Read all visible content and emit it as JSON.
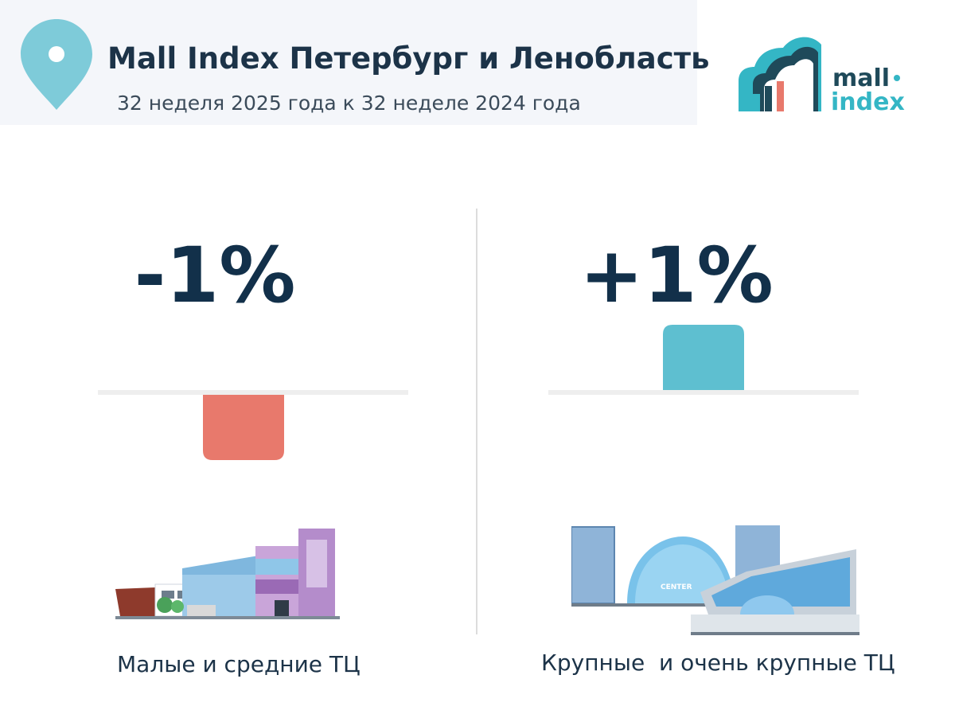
{
  "header": {
    "title": "Mall Index Петербург и Ленобласть",
    "subtitle": "32 неделя 2025 года к 32 неделе 2024 года",
    "pin_icon": "location-pin-icon",
    "logo": {
      "line1": "mall",
      "line2": "index"
    }
  },
  "colors": {
    "pin": "#7ecbd9",
    "negative": "#e8796c",
    "positive": "#5ebfd0",
    "baseline": "#eeeeee",
    "text": "#12304a",
    "logo_teal": "#34b6c5",
    "logo_dark": "#1f4a5a"
  },
  "chart_data": [
    {
      "type": "bar",
      "categories": [
        "Малые и средние ТЦ"
      ],
      "values": [
        -1
      ],
      "value_label": "-1%",
      "unit": "%"
    },
    {
      "type": "bar",
      "categories": [
        "Крупные  и очень крупные ТЦ"
      ],
      "values": [
        1
      ],
      "value_label": "+1%",
      "unit": "%"
    }
  ]
}
